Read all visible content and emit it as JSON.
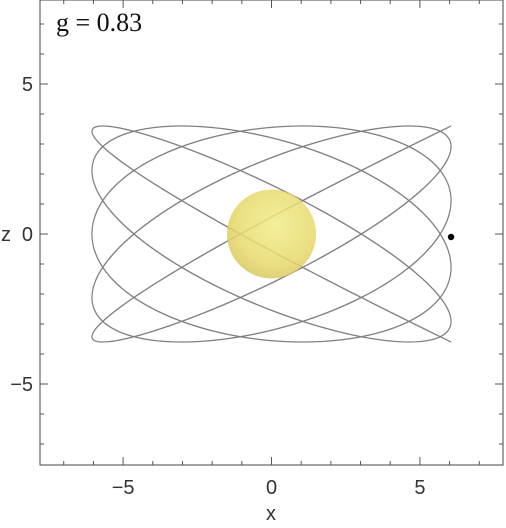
{
  "chart_data": {
    "type": "line",
    "annotation": "g = 0.83",
    "xlabel": "x",
    "ylabel": "z",
    "xlim": [
      -7.8,
      7.8
    ],
    "ylim": [
      -7.7,
      7.8
    ],
    "x_ticks": [
      -5,
      0,
      5
    ],
    "y_ticks": [
      -5,
      0,
      5
    ],
    "x_tick_labels": [
      "−5",
      "0",
      "5"
    ],
    "y_tick_labels": [
      "−5",
      "0",
      "5"
    ],
    "grid": false,
    "central_body": {
      "x": 0,
      "z": 0,
      "radius": 1.5,
      "color": "#e3d55c"
    },
    "marker": {
      "x": 6.05,
      "z": -0.1,
      "color": "#000000"
    },
    "orbit": {
      "color": "#808080",
      "x_amplitude": 6.05,
      "z_amplitude": 3.6,
      "x_frequency": 1.0,
      "z_frequency": 0.9,
      "z_phase": 1.57,
      "t_max": 200
    }
  }
}
